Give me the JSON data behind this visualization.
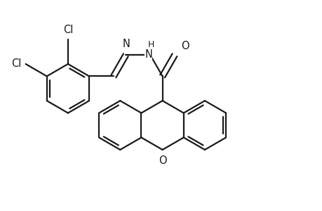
{
  "background_color": "#ffffff",
  "line_color": "#1a1a1a",
  "line_width": 1.6,
  "font_size": 10.5,
  "xlim": [
    0,
    9.2
  ],
  "ylim": [
    0,
    6.2
  ]
}
